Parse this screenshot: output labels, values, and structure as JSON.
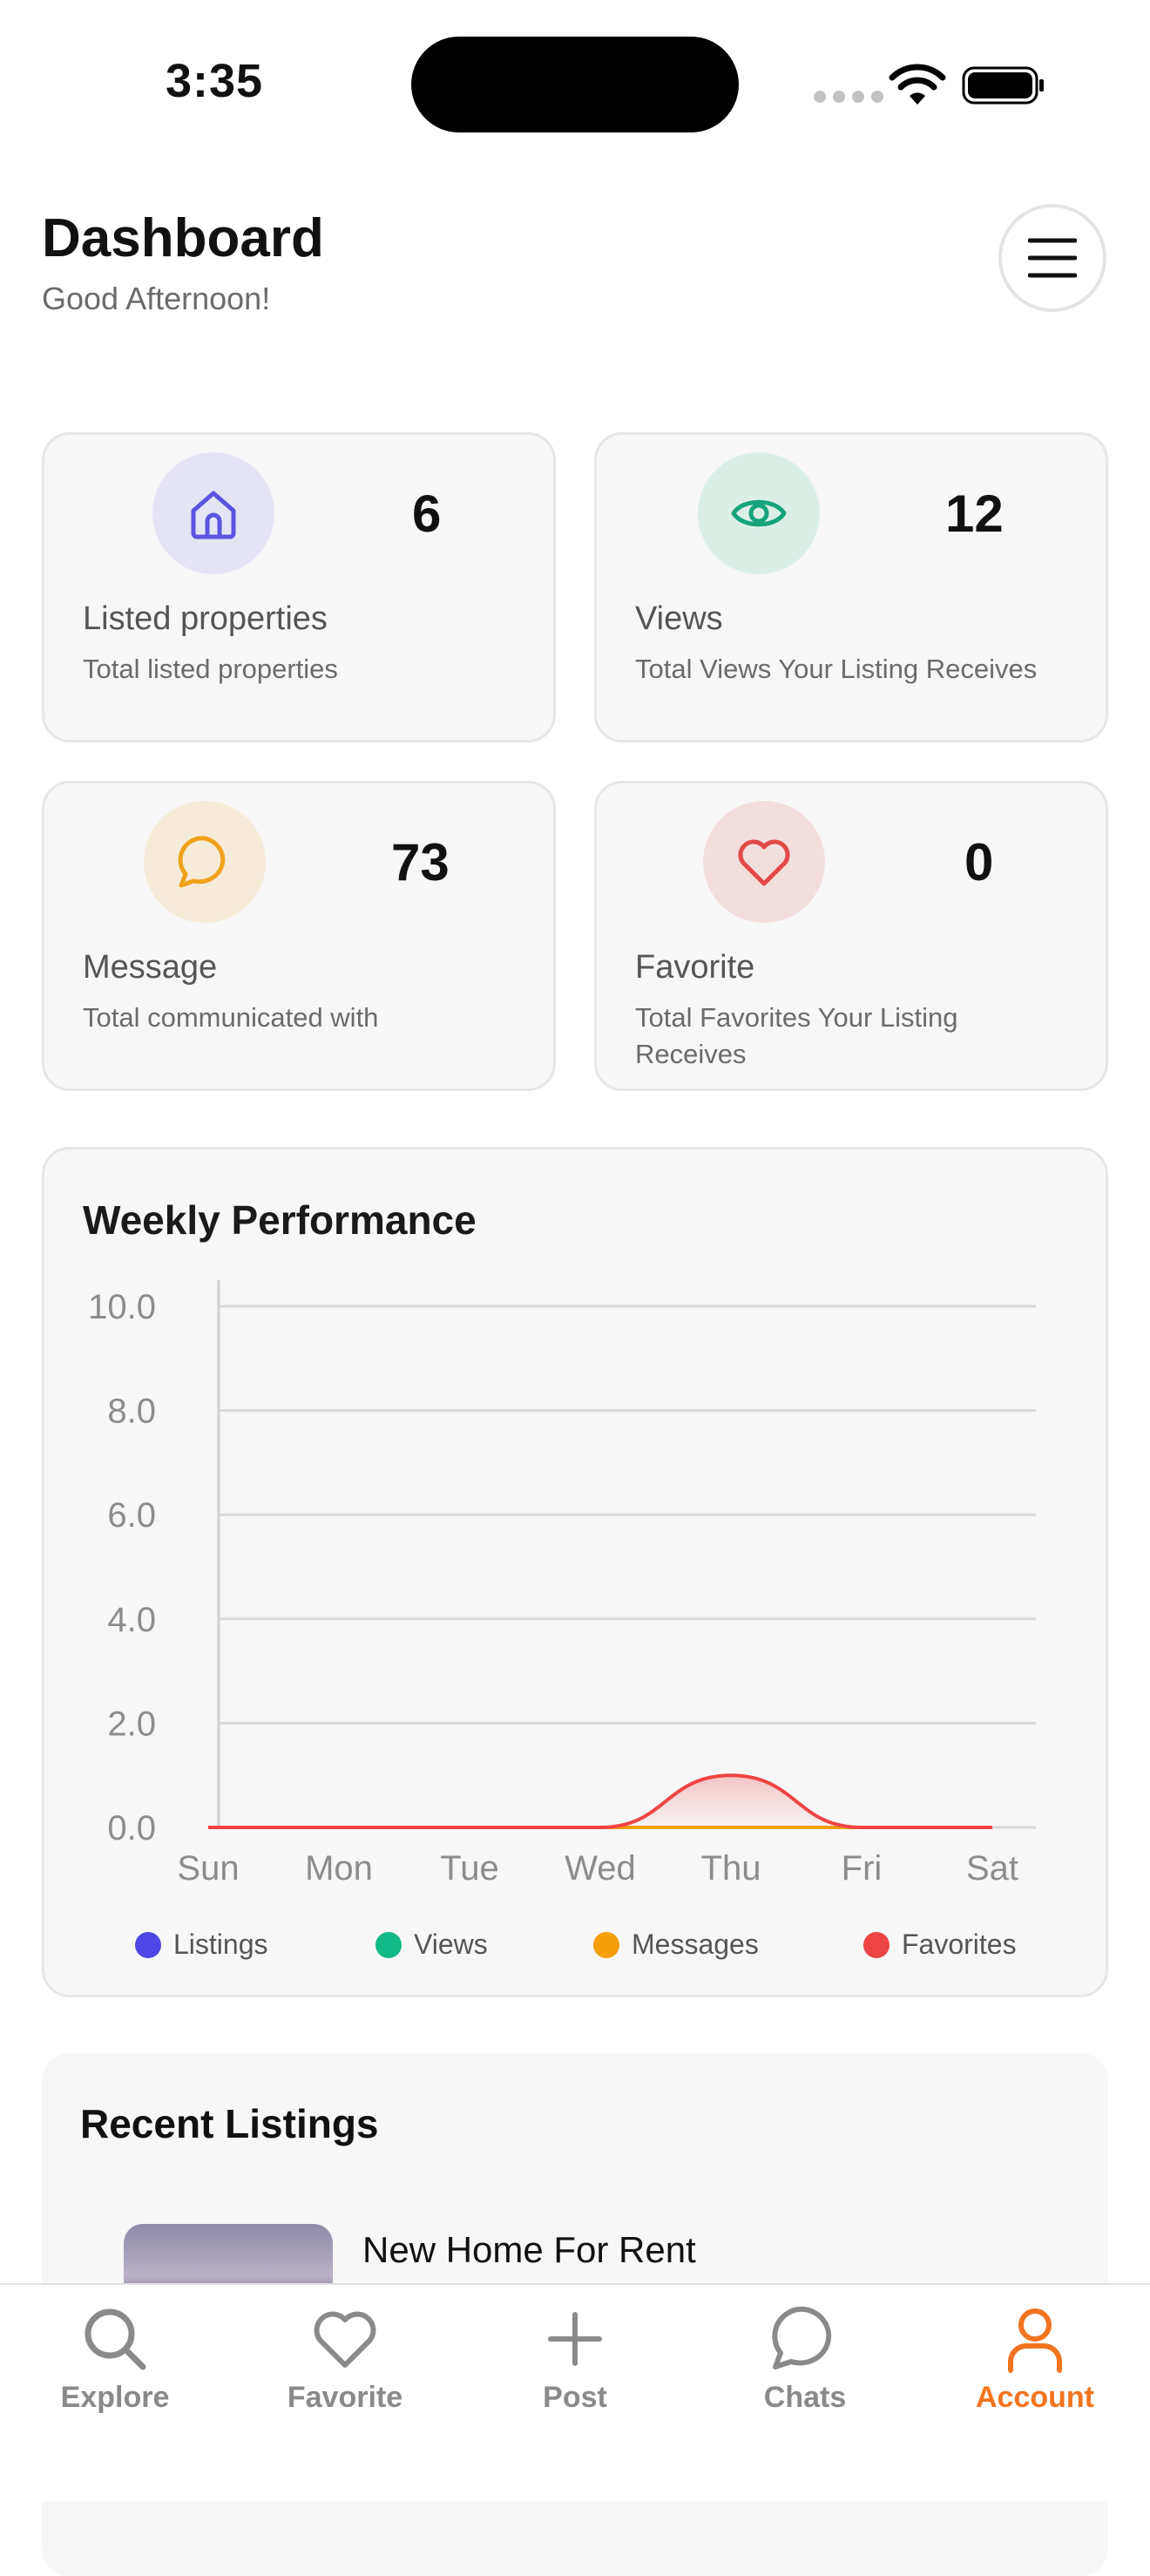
{
  "status_bar": {
    "time": "3:35"
  },
  "header": {
    "title": "Dashboard",
    "subtitle": "Good Afternoon!"
  },
  "stats": [
    {
      "value": "6",
      "label": "Listed properties",
      "description": "Total listed properties",
      "icon": "house-icon",
      "color": "#5b54e0",
      "bg": "#e5e4f5"
    },
    {
      "value": "12",
      "label": "Views",
      "description": "Total Views Your Listing Receives",
      "icon": "eye-icon",
      "color": "#16a37b",
      "bg": "#dcefe7"
    },
    {
      "value": "73",
      "label": "Message",
      "description": "Total communicated with",
      "icon": "chat-bubble-icon",
      "color": "#f0a11b",
      "bg": "#f6ebd8"
    },
    {
      "value": "0",
      "label": "Favorite",
      "description": "Total Favorites Your Listing Receives",
      "icon": "heart-icon",
      "color": "#e34949",
      "bg": "#f3dede"
    }
  ],
  "chart": {
    "title": "Weekly Performance",
    "legend": [
      {
        "name": "Listings",
        "color": "#5046e5"
      },
      {
        "name": "Views",
        "color": "#12b886"
      },
      {
        "name": "Messages",
        "color": "#f59f0b"
      },
      {
        "name": "Favorites",
        "color": "#ef4444"
      }
    ]
  },
  "chart_data": {
    "type": "area",
    "title": "Weekly Performance",
    "categories": [
      "Sun",
      "Mon",
      "Tue",
      "Wed",
      "Thu",
      "Fri",
      "Sat"
    ],
    "y_ticks": [
      "0.0",
      "2.0",
      "4.0",
      "6.0",
      "8.0",
      "10.0"
    ],
    "ylim": [
      0,
      10
    ],
    "grid": true,
    "legend_position": "bottom",
    "series": [
      {
        "name": "Listings",
        "color": "#5046e5",
        "values": [
          0,
          0,
          0,
          0,
          0,
          0,
          0
        ]
      },
      {
        "name": "Views",
        "color": "#12b886",
        "values": [
          0,
          0,
          0,
          0,
          0,
          0,
          0
        ]
      },
      {
        "name": "Messages",
        "color": "#f59f0b",
        "values": [
          0,
          0,
          0,
          0,
          0,
          0,
          0
        ]
      },
      {
        "name": "Favorites",
        "color": "#ef4444",
        "values": [
          0,
          0,
          0,
          0,
          1,
          0,
          0
        ]
      }
    ]
  },
  "recent": {
    "title": "Recent Listings",
    "items": [
      {
        "title": "New Home For Rent"
      }
    ]
  },
  "tabs": [
    {
      "label": "Explore",
      "icon": "search-icon",
      "active": false
    },
    {
      "label": "Favorite",
      "icon": "heart-icon",
      "active": false
    },
    {
      "label": "Post",
      "icon": "plus-icon",
      "active": false
    },
    {
      "label": "Chats",
      "icon": "chat-bubble-icon",
      "active": false
    },
    {
      "label": "Account",
      "icon": "person-icon",
      "active": true
    }
  ],
  "colors": {
    "accent": "#f27420",
    "inactive_tab": "#8a8a8a"
  }
}
